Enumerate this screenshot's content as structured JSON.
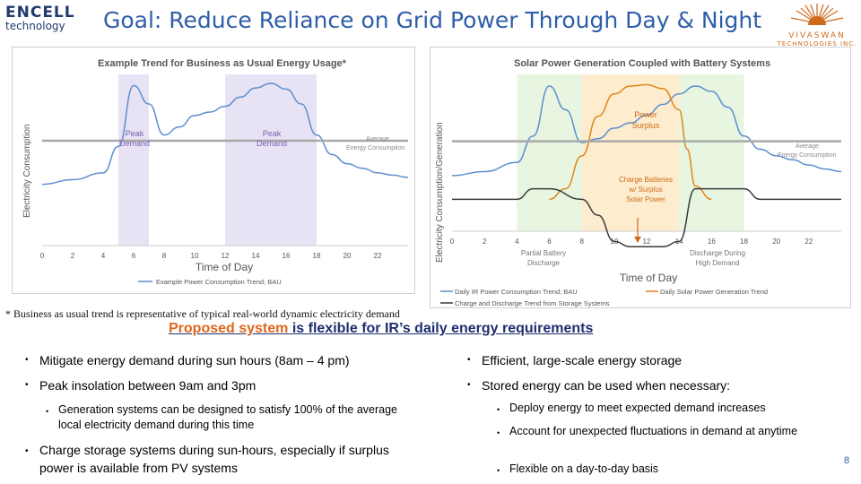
{
  "logo_left": {
    "line1": "ENCELL",
    "line2": "technology"
  },
  "title": "Goal: Reduce Reliance on Grid Power Through Day & Night",
  "logo_right": {
    "line1": "VIVASWAN",
    "line2": "TECHNOLOGIES INC."
  },
  "left_chart": {
    "title": "Example Trend for Business as Usual Energy Usage*",
    "ylabel": "Electricity Consumption",
    "xlabel": "Time of Day",
    "peak1": [
      "Peak",
      "Demand"
    ],
    "peak2": [
      "Peak",
      "Demand"
    ],
    "avg_label": [
      "Average",
      "Energy Consumption"
    ],
    "legend": "Example Power Consumption Trend; BAU"
  },
  "right_chart": {
    "title": "Solar Power Generation Coupled with Battery Systems",
    "ylabel": "Electricity Consumption/Generation",
    "xlabel": "Time of Day",
    "surplus": [
      "Power",
      "Surplus"
    ],
    "charge": [
      "Charge Batteries",
      "w/ Surplus",
      "Solar Power"
    ],
    "partial": [
      "Partial Battery",
      "Discharge"
    ],
    "high": [
      "Discharge During",
      "High Demand"
    ],
    "avg_label": [
      "Average",
      "Energy Consumption"
    ],
    "legend1": "Daily IR Power Consumption Trend; BAU",
    "legend2": "Daily Solar Power Generation Trend",
    "legend3": "Charge and Discharge Trend from Storage Systems"
  },
  "chart_data": [
    {
      "type": "line",
      "title": "Example Trend for Business as Usual Energy Usage*",
      "xlabel": "Time of Day",
      "ylabel": "Electricity Consumption",
      "x_ticks": [
        0,
        2,
        4,
        6,
        8,
        10,
        12,
        14,
        16,
        18,
        20,
        22
      ],
      "xlim": [
        0,
        24
      ],
      "series": [
        {
          "name": "Example Power Consumption Trend; BAU",
          "x": [
            0,
            2,
            4,
            5,
            6,
            7,
            8,
            9,
            10,
            11,
            12,
            13,
            14,
            15,
            16,
            17,
            18,
            19,
            20,
            21,
            22,
            23,
            24
          ],
          "y": [
            0.12,
            0.16,
            0.22,
            0.45,
            0.98,
            0.82,
            0.55,
            0.62,
            0.72,
            0.75,
            0.8,
            0.88,
            0.96,
            1.0,
            0.95,
            0.82,
            0.55,
            0.38,
            0.3,
            0.26,
            0.22,
            0.2,
            0.18
          ]
        },
        {
          "name": "Average Energy Consumption",
          "x": [
            0,
            24
          ],
          "y": [
            0.5,
            0.5
          ]
        }
      ],
      "highlight_ranges": [
        [
          5,
          7
        ],
        [
          12,
          18
        ]
      ],
      "highlight_color": "#e4ddf3"
    },
    {
      "type": "line",
      "title": "Solar Power Generation Coupled with Battery Systems",
      "xlabel": "Time of Day",
      "ylabel": "Electricity Consumption/Generation",
      "x_ticks": [
        0,
        2,
        4,
        6,
        8,
        10,
        12,
        14,
        16,
        18,
        20,
        22
      ],
      "xlim": [
        0,
        24
      ],
      "series": [
        {
          "name": "Daily IR Power Consumption Trend; BAU",
          "x": [
            0,
            2,
            4,
            5,
            6,
            7,
            8,
            9,
            10,
            11,
            12,
            13,
            14,
            15,
            16,
            17,
            18,
            19,
            20,
            21,
            22,
            23,
            24
          ],
          "y": [
            0.3,
            0.33,
            0.4,
            0.6,
            0.98,
            0.8,
            0.55,
            0.58,
            0.66,
            0.7,
            0.76,
            0.84,
            0.92,
            0.98,
            0.94,
            0.82,
            0.6,
            0.5,
            0.45,
            0.42,
            0.38,
            0.35,
            0.33
          ]
        },
        {
          "name": "Daily Solar Power Generation Trend",
          "x": [
            6,
            7,
            8,
            9,
            10,
            11,
            12,
            13,
            14,
            14.5,
            15,
            16
          ],
          "y": [
            0.12,
            0.2,
            0.45,
            0.75,
            0.92,
            0.98,
            0.99,
            0.96,
            0.8,
            0.5,
            0.22,
            0.12
          ]
        },
        {
          "name": "Charge and Discharge Trend from Storage Systems",
          "x": [
            0,
            4,
            5,
            6,
            8,
            9,
            10,
            11,
            13,
            14,
            15,
            18,
            19,
            24
          ],
          "y": [
            0.12,
            0.12,
            0.2,
            0.2,
            0.12,
            0.0,
            -0.2,
            -0.24,
            -0.24,
            -0.2,
            0.2,
            0.2,
            0.12,
            0.12
          ]
        },
        {
          "name": "Average Energy Consumption",
          "x": [
            0,
            24
          ],
          "y": [
            0.56,
            0.56
          ]
        }
      ],
      "highlight_ranges": [
        [
          4,
          8
        ],
        [
          8,
          14
        ],
        [
          14,
          18
        ]
      ],
      "highlight_colors": [
        "#e3f3dc",
        "#fde9c4",
        "#e3f3dc"
      ]
    }
  ],
  "footnote": "* Business as usual trend is representative of typical real-world dynamic electricity demand",
  "subheading": {
    "highlight": "Proposed system",
    "rest": " is flexible for IR’s daily energy requirements"
  },
  "left_bullets": {
    "b1": "Mitigate energy demand during sun hours (8am – 4 pm)",
    "b2": "Peak insolation between 9am and 3pm",
    "b2a": "Generation systems can be designed to satisfy 100% of the average local electricity demand during this time",
    "b3_bold": "Charge storage systems during sun-hours,",
    "b3_rest": " especially if surplus power is available from PV systems"
  },
  "right_bullets": {
    "b1": "Efficient, large-scale energy storage",
    "b2": "Stored energy can be used when necessary:",
    "b2a": "Deploy energy to meet expected demand increases",
    "b2b": "Account for unexpected fluctuations in demand at anytime",
    "b2c": "Flexible on a day-to-day basis"
  },
  "page_number": "8",
  "colors": {
    "title": "#2e5ea8",
    "consumption_line": "#5b8fd1",
    "solar_line": "#e0861b",
    "storage_line": "#3a3a3a",
    "avg_line": "#a8a8a8"
  }
}
